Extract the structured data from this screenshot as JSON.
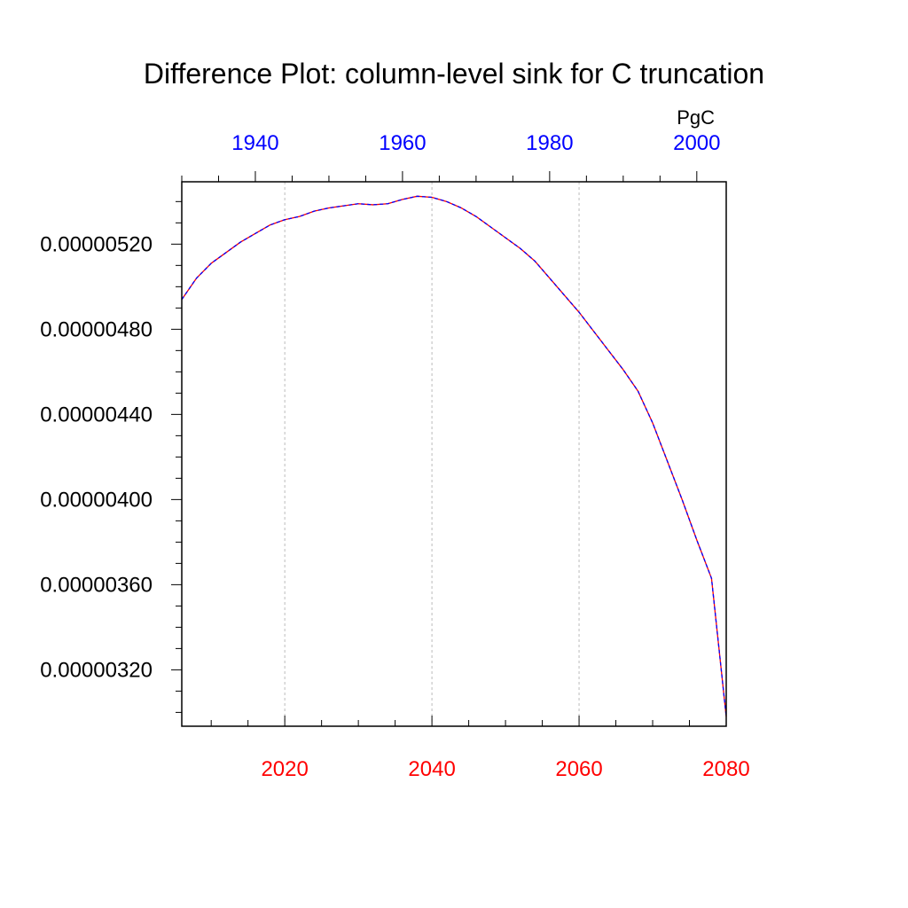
{
  "chart_data": {
    "type": "line",
    "title": "Difference Plot: column-level sink for C truncation",
    "units_label": "PgC",
    "xlabel": "",
    "ylabel": "",
    "x_bottom": {
      "range": [
        2006,
        2080
      ],
      "ticks": [
        2020,
        2040,
        2060,
        2080
      ],
      "tick_labels": [
        "2020",
        "2040",
        "2060",
        "2080"
      ],
      "color": "#ff0000"
    },
    "x_top": {
      "range": [
        1930,
        2004
      ],
      "ticks": [
        1940,
        1960,
        1980,
        2000
      ],
      "tick_labels": [
        "1940",
        "1960",
        "1980",
        "2000"
      ],
      "color": "#0000ff"
    },
    "ylim": [
      2.935e-06,
      5.493e-06
    ],
    "y_ticks": [
      3.2e-06,
      3.6e-06,
      4e-06,
      4.4e-06,
      4.8e-06,
      5.2e-06
    ],
    "y_tick_labels": [
      "0.00000320",
      "0.00000360",
      "0.00000400",
      "0.00000440",
      "0.00000480",
      "0.00000520"
    ],
    "grid": "vertical dashed at major bottom ticks",
    "series": [
      {
        "color": "#ff0000",
        "dash": "solid",
        "x": [
          2006,
          2008,
          2010,
          2012,
          2014,
          2016,
          2018,
          2020,
          2022,
          2024,
          2026,
          2028,
          2030,
          2032,
          2034,
          2036,
          2038,
          2040,
          2042,
          2044,
          2046,
          2048,
          2050,
          2052,
          2054,
          2056,
          2058,
          2060,
          2062,
          2064,
          2066,
          2068,
          2070,
          2072,
          2074,
          2076,
          2078,
          2080
        ],
        "values": [
          4.94e-06,
          5.04e-06,
          5.11e-06,
          5.16e-06,
          5.21e-06,
          5.25e-06,
          5.29e-06,
          5.315e-06,
          5.33e-06,
          5.355e-06,
          5.37e-06,
          5.38e-06,
          5.39e-06,
          5.385e-06,
          5.39e-06,
          5.41e-06,
          5.425e-06,
          5.42e-06,
          5.4e-06,
          5.37e-06,
          5.33e-06,
          5.28e-06,
          5.23e-06,
          5.18e-06,
          5.12e-06,
          5.04e-06,
          4.96e-06,
          4.88e-06,
          4.79e-06,
          4.7e-06,
          4.61e-06,
          4.51e-06,
          4.36e-06,
          4.18e-06,
          4e-06,
          3.81e-06,
          3.63e-06,
          2.98e-06
        ]
      },
      {
        "color": "#0000ff",
        "dash": "dashed",
        "x": [
          2006,
          2008,
          2010,
          2012,
          2014,
          2016,
          2018,
          2020,
          2022,
          2024,
          2026,
          2028,
          2030,
          2032,
          2034,
          2036,
          2038,
          2040,
          2042,
          2044,
          2046,
          2048,
          2050,
          2052,
          2054,
          2056,
          2058,
          2060,
          2062,
          2064,
          2066,
          2068,
          2070,
          2072,
          2074,
          2076,
          2078,
          2080
        ],
        "values": [
          4.94e-06,
          5.04e-06,
          5.11e-06,
          5.16e-06,
          5.21e-06,
          5.25e-06,
          5.29e-06,
          5.315e-06,
          5.33e-06,
          5.355e-06,
          5.37e-06,
          5.38e-06,
          5.39e-06,
          5.385e-06,
          5.39e-06,
          5.41e-06,
          5.425e-06,
          5.42e-06,
          5.4e-06,
          5.37e-06,
          5.33e-06,
          5.28e-06,
          5.23e-06,
          5.18e-06,
          5.12e-06,
          5.04e-06,
          4.96e-06,
          4.88e-06,
          4.79e-06,
          4.7e-06,
          4.61e-06,
          4.51e-06,
          4.36e-06,
          4.18e-06,
          4e-06,
          3.81e-06,
          3.63e-06,
          2.98e-06
        ]
      }
    ]
  }
}
